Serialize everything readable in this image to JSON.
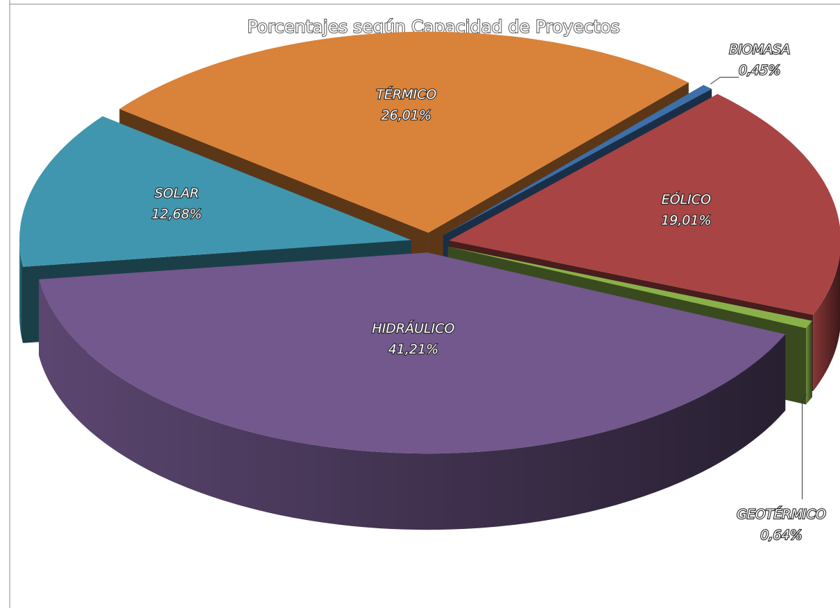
{
  "chart_data": {
    "type": "pie",
    "title": "Porcentajes según Capacidad de Proyectos",
    "categories": [
      "TÉRMICO",
      "BIOMASA",
      "EÓLICO",
      "GEOTÉRMICO",
      "HIDRÁULICO",
      "SOLAR"
    ],
    "values": [
      26.01,
      0.45,
      19.01,
      0.64,
      41.21,
      12.68
    ],
    "value_labels": [
      "26,01%",
      "0,45%",
      "19,01%",
      "0,64%",
      "41,21%",
      "12,68%"
    ],
    "colors": [
      "#d9823a",
      "#3d6fa8",
      "#a84444",
      "#8ab04a",
      "#72588c",
      "#4096ae"
    ]
  }
}
